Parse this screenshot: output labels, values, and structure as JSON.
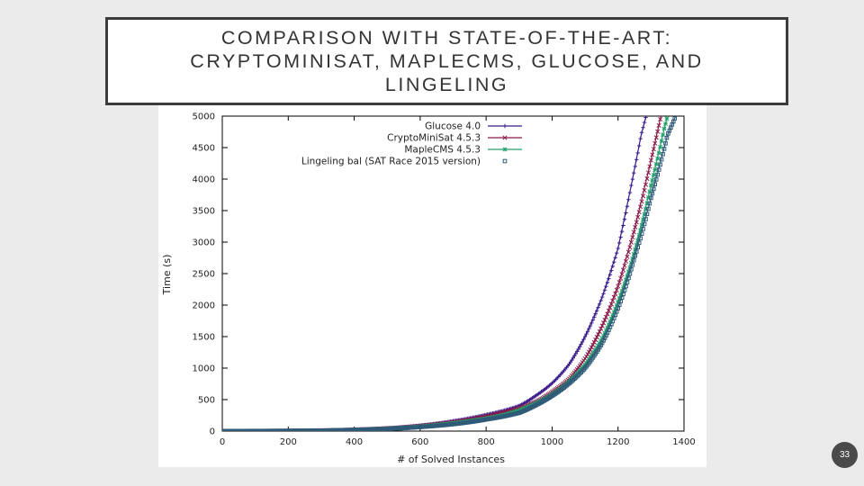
{
  "slide": {
    "title_line1": "COMPARISON WITH STATE-OF-THE-ART:",
    "title_line2": "CRYPTOMINISAT, MAPLECMS, GLUCOSE, AND",
    "title_line3": "LINGELING",
    "page_number": "33"
  },
  "chart_data": {
    "type": "line",
    "xlabel": "# of Solved Instances",
    "ylabel": "Time (s)",
    "xlim": [
      0,
      1400
    ],
    "ylim": [
      0,
      5000
    ],
    "x_ticks": [
      "0",
      "200",
      "400",
      "600",
      "800",
      "1000",
      "1200",
      "1400"
    ],
    "y_ticks": [
      "0",
      "500",
      "1000",
      "1500",
      "2000",
      "2500",
      "3000",
      "3500",
      "4000",
      "4500",
      "5000"
    ],
    "grid": false,
    "legend_position": "top-right",
    "series": [
      {
        "name": "Glucose 4.0",
        "color": "#3a1c8c",
        "marker": "plus",
        "points": [
          [
            0,
            0
          ],
          [
            200,
            5
          ],
          [
            400,
            25
          ],
          [
            600,
            90
          ],
          [
            700,
            160
          ],
          [
            800,
            260
          ],
          [
            850,
            320
          ],
          [
            900,
            400
          ],
          [
            950,
            560
          ],
          [
            1000,
            760
          ],
          [
            1050,
            1050
          ],
          [
            1100,
            1500
          ],
          [
            1150,
            2100
          ],
          [
            1200,
            2900
          ],
          [
            1240,
            3900
          ],
          [
            1270,
            4700
          ],
          [
            1285,
            5000
          ]
        ]
      },
      {
        "name": "CryptoMiniSat 4.5.3",
        "color": "#8b1a4a",
        "marker": "x",
        "points": [
          [
            0,
            0
          ],
          [
            200,
            5
          ],
          [
            400,
            22
          ],
          [
            600,
            80
          ],
          [
            700,
            140
          ],
          [
            800,
            230
          ],
          [
            850,
            290
          ],
          [
            900,
            360
          ],
          [
            950,
            460
          ],
          [
            1000,
            620
          ],
          [
            1050,
            820
          ],
          [
            1100,
            1150
          ],
          [
            1150,
            1650
          ],
          [
            1200,
            2300
          ],
          [
            1250,
            3200
          ],
          [
            1300,
            4300
          ],
          [
            1330,
            5000
          ]
        ]
      },
      {
        "name": "MapleCMS 4.5.3",
        "color": "#22a06b",
        "marker": "star",
        "points": [
          [
            0,
            0
          ],
          [
            200,
            4
          ],
          [
            400,
            20
          ],
          [
            600,
            72
          ],
          [
            700,
            125
          ],
          [
            800,
            200
          ],
          [
            850,
            250
          ],
          [
            900,
            330
          ],
          [
            950,
            440
          ],
          [
            1000,
            580
          ],
          [
            1050,
            780
          ],
          [
            1100,
            1050
          ],
          [
            1150,
            1450
          ],
          [
            1200,
            2050
          ],
          [
            1250,
            2850
          ],
          [
            1300,
            3900
          ],
          [
            1340,
            4800
          ],
          [
            1350,
            5000
          ]
        ]
      },
      {
        "name": "Lingeling bal (SAT Race 2015 version)",
        "color": "#2f5b78",
        "marker": "square",
        "points": [
          [
            0,
            0
          ],
          [
            200,
            4
          ],
          [
            400,
            18
          ],
          [
            600,
            65
          ],
          [
            700,
            110
          ],
          [
            800,
            185
          ],
          [
            850,
            230
          ],
          [
            900,
            290
          ],
          [
            950,
            410
          ],
          [
            1000,
            560
          ],
          [
            1050,
            750
          ],
          [
            1100,
            1000
          ],
          [
            1150,
            1380
          ],
          [
            1200,
            1950
          ],
          [
            1250,
            2750
          ],
          [
            1300,
            3700
          ],
          [
            1350,
            4700
          ],
          [
            1375,
            5000
          ]
        ]
      }
    ]
  }
}
